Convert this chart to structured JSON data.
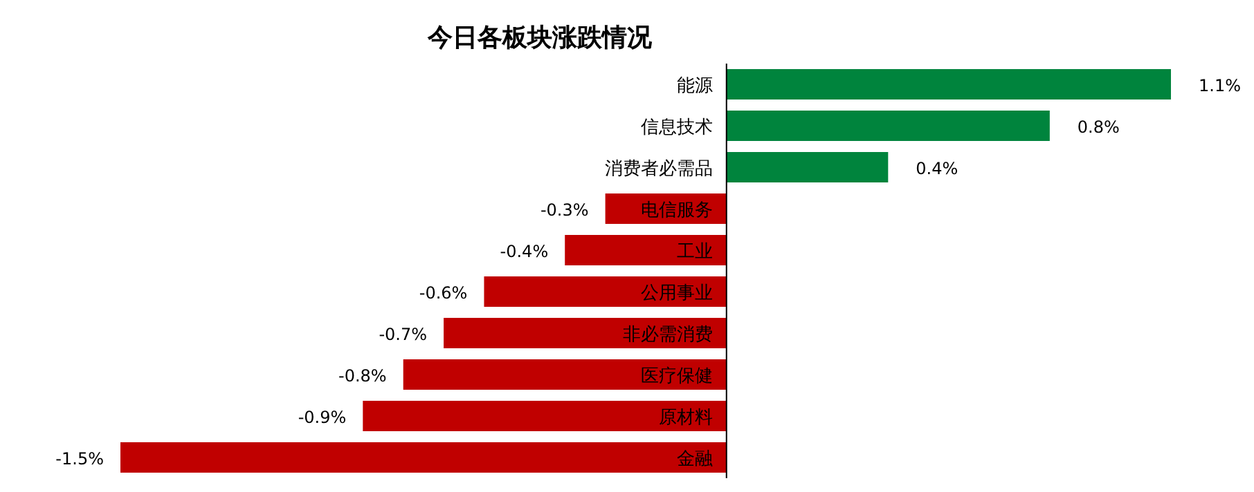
{
  "chart_data": {
    "type": "bar",
    "orientation": "horizontal",
    "title": "今日各板块涨跌情况",
    "categories": [
      "能源",
      "信息技术",
      "消费者必需品",
      "电信服务",
      "工业",
      "公用事业",
      "非必需消费",
      "医疗保健",
      "原材料",
      "金融"
    ],
    "values": [
      1.1,
      0.8,
      0.4,
      -0.3,
      -0.4,
      -0.6,
      -0.7,
      -0.8,
      -0.9,
      -1.5
    ],
    "colors": [
      "#00843d",
      "#00843d",
      "#00843d",
      "#c00000",
      "#c00000",
      "#c00000",
      "#c00000",
      "#c00000",
      "#c00000",
      "#c00000"
    ],
    "value_labels": [
      "1.1%",
      "0.8%",
      "0.4%",
      "-0.3%",
      "-0.4%",
      "-0.6%",
      "-0.7%",
      "-0.8%",
      "-0.9%",
      "-1.5%"
    ]
  }
}
